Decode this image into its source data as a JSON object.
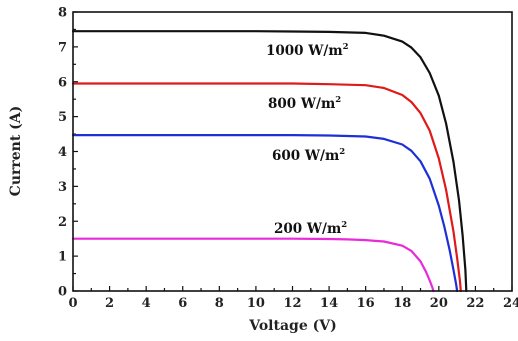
{
  "chart_data": {
    "type": "line",
    "title": "",
    "xlabel": "Voltage (V)",
    "ylabel": "Current (A)",
    "xlim": [
      0,
      24
    ],
    "ylim": [
      0,
      8
    ],
    "x_ticks": [
      0,
      2,
      4,
      6,
      8,
      10,
      12,
      14,
      16,
      18,
      20,
      22,
      24
    ],
    "y_ticks": [
      0,
      1,
      2,
      3,
      4,
      5,
      6,
      7,
      8
    ],
    "grid": false,
    "legend": "none",
    "series": [
      {
        "name": "1000 W/m²",
        "label_main": "1000 W/m",
        "label_sup": "2",
        "color": "#111111",
        "x": [
          0,
          2,
          4,
          6,
          8,
          10,
          12,
          14,
          16,
          17,
          18,
          18.5,
          19,
          19.5,
          20,
          20.4,
          20.8,
          21.1,
          21.3,
          21.45,
          21.5
        ],
        "y": [
          7.45,
          7.45,
          7.45,
          7.45,
          7.45,
          7.45,
          7.44,
          7.43,
          7.4,
          7.32,
          7.15,
          6.98,
          6.7,
          6.25,
          5.6,
          4.8,
          3.7,
          2.6,
          1.6,
          0.6,
          0
        ]
      },
      {
        "name": "800 W/m²",
        "label_main": "800 W/m",
        "label_sup": "2",
        "color": "#e0191a",
        "x": [
          0,
          2,
          4,
          6,
          8,
          10,
          12,
          14,
          16,
          17,
          18,
          18.5,
          19,
          19.5,
          20,
          20.4,
          20.8,
          21.0,
          21.15,
          21.2
        ],
        "y": [
          5.95,
          5.95,
          5.95,
          5.95,
          5.95,
          5.95,
          5.95,
          5.93,
          5.9,
          5.82,
          5.62,
          5.42,
          5.1,
          4.6,
          3.8,
          2.9,
          1.7,
          0.95,
          0.3,
          0
        ]
      },
      {
        "name": "600 W/m²",
        "label_main": "600 W/m",
        "label_sup": "2",
        "color": "#1f2fd6",
        "x": [
          0,
          2,
          4,
          6,
          8,
          10,
          12,
          14,
          16,
          17,
          18,
          18.5,
          19,
          19.5,
          20,
          20.3,
          20.6,
          20.8,
          20.95,
          21.0
        ],
        "y": [
          4.47,
          4.47,
          4.47,
          4.47,
          4.47,
          4.47,
          4.47,
          4.46,
          4.43,
          4.36,
          4.2,
          4.02,
          3.72,
          3.22,
          2.45,
          1.85,
          1.15,
          0.6,
          0.18,
          0
        ]
      },
      {
        "name": "200 W/m²",
        "label_main": "200 W/m",
        "label_sup": "2",
        "color": "#e82ad8",
        "x": [
          0,
          2,
          4,
          6,
          8,
          10,
          12,
          14,
          15,
          16,
          17,
          18,
          18.5,
          19,
          19.3,
          19.5,
          19.65,
          19.7
        ],
        "y": [
          1.5,
          1.5,
          1.5,
          1.5,
          1.5,
          1.5,
          1.5,
          1.49,
          1.48,
          1.46,
          1.42,
          1.3,
          1.15,
          0.85,
          0.55,
          0.3,
          0.1,
          0
        ]
      }
    ]
  }
}
